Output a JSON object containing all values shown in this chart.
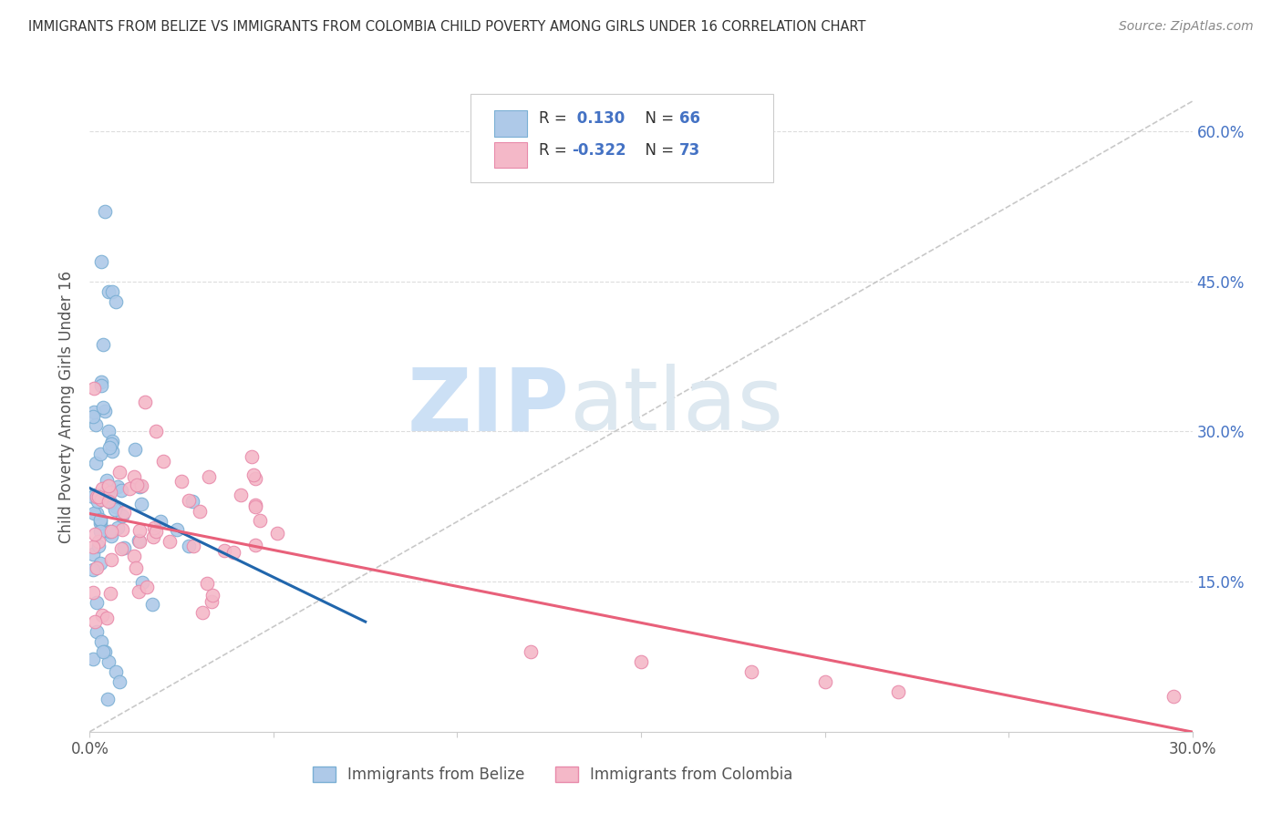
{
  "title": "IMMIGRANTS FROM BELIZE VS IMMIGRANTS FROM COLOMBIA CHILD POVERTY AMONG GIRLS UNDER 16 CORRELATION CHART",
  "source": "Source: ZipAtlas.com",
  "ylabel": "Child Poverty Among Girls Under 16",
  "xlim": [
    0.0,
    0.3
  ],
  "ylim": [
    0.0,
    0.65
  ],
  "belize_color": "#aec9e8",
  "belize_edge": "#7aafd4",
  "colombia_color": "#f4b8c8",
  "colombia_edge": "#e88aaa",
  "belize_R": 0.13,
  "belize_N": 66,
  "colombia_R": -0.322,
  "colombia_N": 73,
  "belize_line_color": "#2166ac",
  "colombia_line_color": "#e8607a",
  "ref_line_color": "#bbbbbb",
  "watermark_zip": "ZIP",
  "watermark_atlas": "atlas",
  "watermark_color": "#cce0f5",
  "title_color": "#333333",
  "source_color": "#888888",
  "axis_label_color": "#555555",
  "tick_color": "#4472c4",
  "legend_R_color": "#4472c4",
  "legend_N_color": "#4472c4",
  "legend_text_color": "#333333"
}
